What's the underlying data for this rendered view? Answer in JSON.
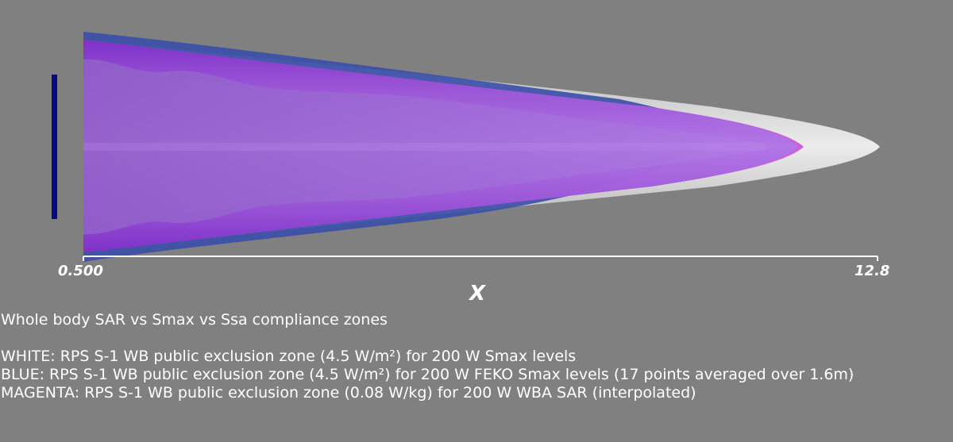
{
  "axis": {
    "label": "X",
    "min_label": "0.500",
    "max_label": "12.8"
  },
  "caption": {
    "title": "Whole body SAR vs Smax vs Ssa compliance zones",
    "lines": [
      "WHITE: RPS S-1 WB public exclusion zone (4.5 W/m²) for 200 W Smax levels",
      "BLUE: RPS S-1 WB public exclusion zone (4.5 W/m²) for 200 W FEKO Smax levels (17 points averaged over 1.6m)",
      "MAGENTA: RPS S-1 WB public exclusion zone (0.08 W/kg) for 200 W WBA SAR (interpolated)"
    ]
  },
  "colors": {
    "background": "#808080",
    "white_zone": "#d8d8d8",
    "blue_zone": "#3a4ea8",
    "magenta_zone": "#c44ad8",
    "purple_zone": "#8a3ad0",
    "antenna": "#0a0a80",
    "axis": "#ffffff"
  },
  "zones": [
    {
      "key": "white",
      "far_x": 12.8
    },
    {
      "key": "blue",
      "far_x": 9.9
    },
    {
      "key": "magenta",
      "far_x": 11.6
    }
  ]
}
